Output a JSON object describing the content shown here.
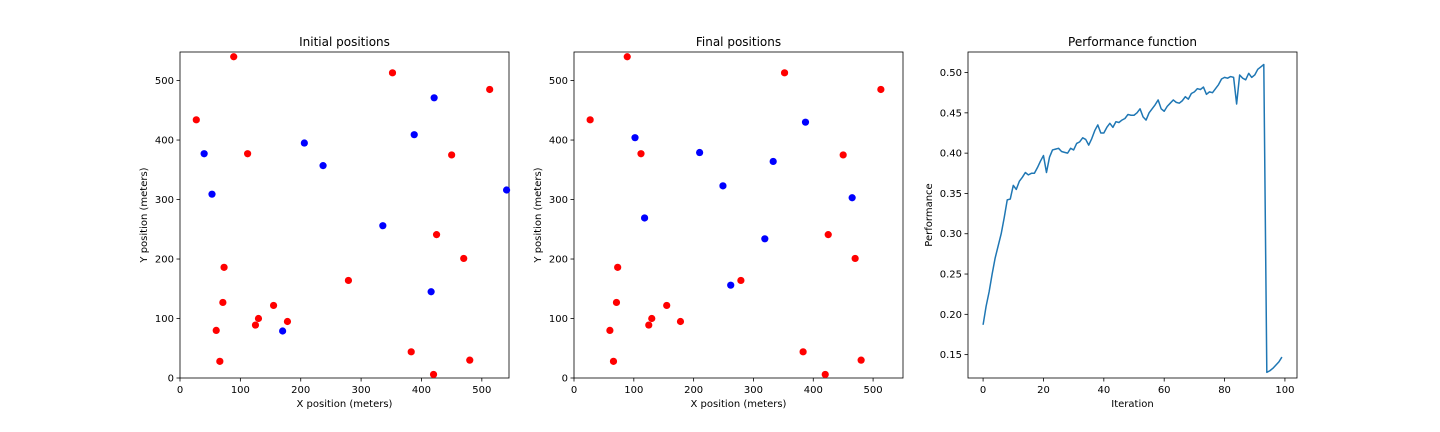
{
  "charts": [
    {
      "type": "scatter",
      "title": "Initial positions",
      "xlabel": "X position (meters)",
      "ylabel": "Y position (meters)",
      "xlim": [
        0,
        545
      ],
      "ylim": [
        0,
        548
      ],
      "xticks": [
        0,
        100,
        200,
        300,
        400,
        500
      ],
      "yticks": [
        0,
        100,
        200,
        300,
        400,
        500
      ],
      "series": [
        {
          "color": "#ff0000",
          "points": [
            [
              89,
              540
            ],
            [
              352,
              513
            ],
            [
              513,
              485
            ],
            [
              27,
              434
            ],
            [
              112,
              377
            ],
            [
              450,
              375
            ],
            [
              425,
              241
            ],
            [
              470,
              201
            ],
            [
              73,
              186
            ],
            [
              279,
              164
            ],
            [
              71,
              127
            ],
            [
              155,
              122
            ],
            [
              130,
              100
            ],
            [
              178,
              95
            ],
            [
              125,
              89
            ],
            [
              60,
              80
            ],
            [
              383,
              44
            ],
            [
              66,
              28
            ],
            [
              480,
              30
            ],
            [
              420,
              6
            ]
          ]
        },
        {
          "color": "#0000ff",
          "points": [
            [
              421,
              471
            ],
            [
              388,
              409
            ],
            [
              206,
              395
            ],
            [
              40,
              377
            ],
            [
              237,
              357
            ],
            [
              53,
              309
            ],
            [
              541,
              316
            ],
            [
              336,
              256
            ],
            [
              416,
              145
            ],
            [
              170,
              79
            ]
          ]
        }
      ]
    },
    {
      "type": "scatter",
      "title": "Final positions",
      "xlabel": "X position (meters)",
      "ylabel": "Y position (meters)",
      "xlim": [
        0,
        550
      ],
      "ylim": [
        0,
        548
      ],
      "xticks": [
        0,
        100,
        200,
        300,
        400,
        500
      ],
      "yticks": [
        0,
        100,
        200,
        300,
        400,
        500
      ],
      "series": [
        {
          "color": "#ff0000",
          "points": [
            [
              89,
              540
            ],
            [
              352,
              513
            ],
            [
              513,
              485
            ],
            [
              27,
              434
            ],
            [
              112,
              377
            ],
            [
              450,
              375
            ],
            [
              425,
              241
            ],
            [
              470,
              201
            ],
            [
              73,
              186
            ],
            [
              279,
              164
            ],
            [
              71,
              127
            ],
            [
              155,
              122
            ],
            [
              130,
              100
            ],
            [
              178,
              95
            ],
            [
              125,
              89
            ],
            [
              60,
              80
            ],
            [
              383,
              44
            ],
            [
              66,
              28
            ],
            [
              480,
              30
            ],
            [
              420,
              6
            ]
          ]
        },
        {
          "color": "#0000ff",
          "points": [
            [
              102,
              404
            ],
            [
              387,
              430
            ],
            [
              210,
              379
            ],
            [
              333,
              364
            ],
            [
              249,
              323
            ],
            [
              465,
              303
            ],
            [
              118,
              269
            ],
            [
              319,
              234
            ],
            [
              262,
              156
            ]
          ]
        }
      ]
    },
    {
      "type": "line",
      "title": "Performance function",
      "xlabel": "Iteration",
      "ylabel": "Performance",
      "xlim": [
        -5,
        104
      ],
      "ylim": [
        0.121,
        0.5255
      ],
      "xticks": [
        0,
        20,
        40,
        60,
        80,
        100
      ],
      "yticks": [
        0.15,
        0.2,
        0.25,
        0.3,
        0.35,
        0.4,
        0.45,
        0.5
      ],
      "color": "#1f77b4",
      "x_start": 0,
      "values": [
        0.187,
        0.21,
        0.228,
        0.25,
        0.27,
        0.285,
        0.3,
        0.32,
        0.342,
        0.343,
        0.36,
        0.355,
        0.365,
        0.37,
        0.376,
        0.373,
        0.375,
        0.375,
        0.382,
        0.39,
        0.397,
        0.376,
        0.395,
        0.404,
        0.405,
        0.406,
        0.402,
        0.401,
        0.4,
        0.406,
        0.404,
        0.412,
        0.414,
        0.419,
        0.417,
        0.41,
        0.418,
        0.428,
        0.435,
        0.425,
        0.425,
        0.432,
        0.437,
        0.432,
        0.439,
        0.438,
        0.441,
        0.443,
        0.448,
        0.447,
        0.447,
        0.45,
        0.455,
        0.445,
        0.441,
        0.45,
        0.455,
        0.46,
        0.466,
        0.455,
        0.452,
        0.458,
        0.462,
        0.466,
        0.463,
        0.462,
        0.465,
        0.47,
        0.467,
        0.474,
        0.476,
        0.48,
        0.479,
        0.482,
        0.473,
        0.476,
        0.475,
        0.48,
        0.485,
        0.492,
        0.494,
        0.493,
        0.495,
        0.494,
        0.461,
        0.497,
        0.493,
        0.491,
        0.499,
        0.494,
        0.497,
        0.504,
        0.507,
        0.51,
        0.128,
        0.13,
        0.133,
        0.137,
        0.141,
        0.147
      ]
    }
  ]
}
